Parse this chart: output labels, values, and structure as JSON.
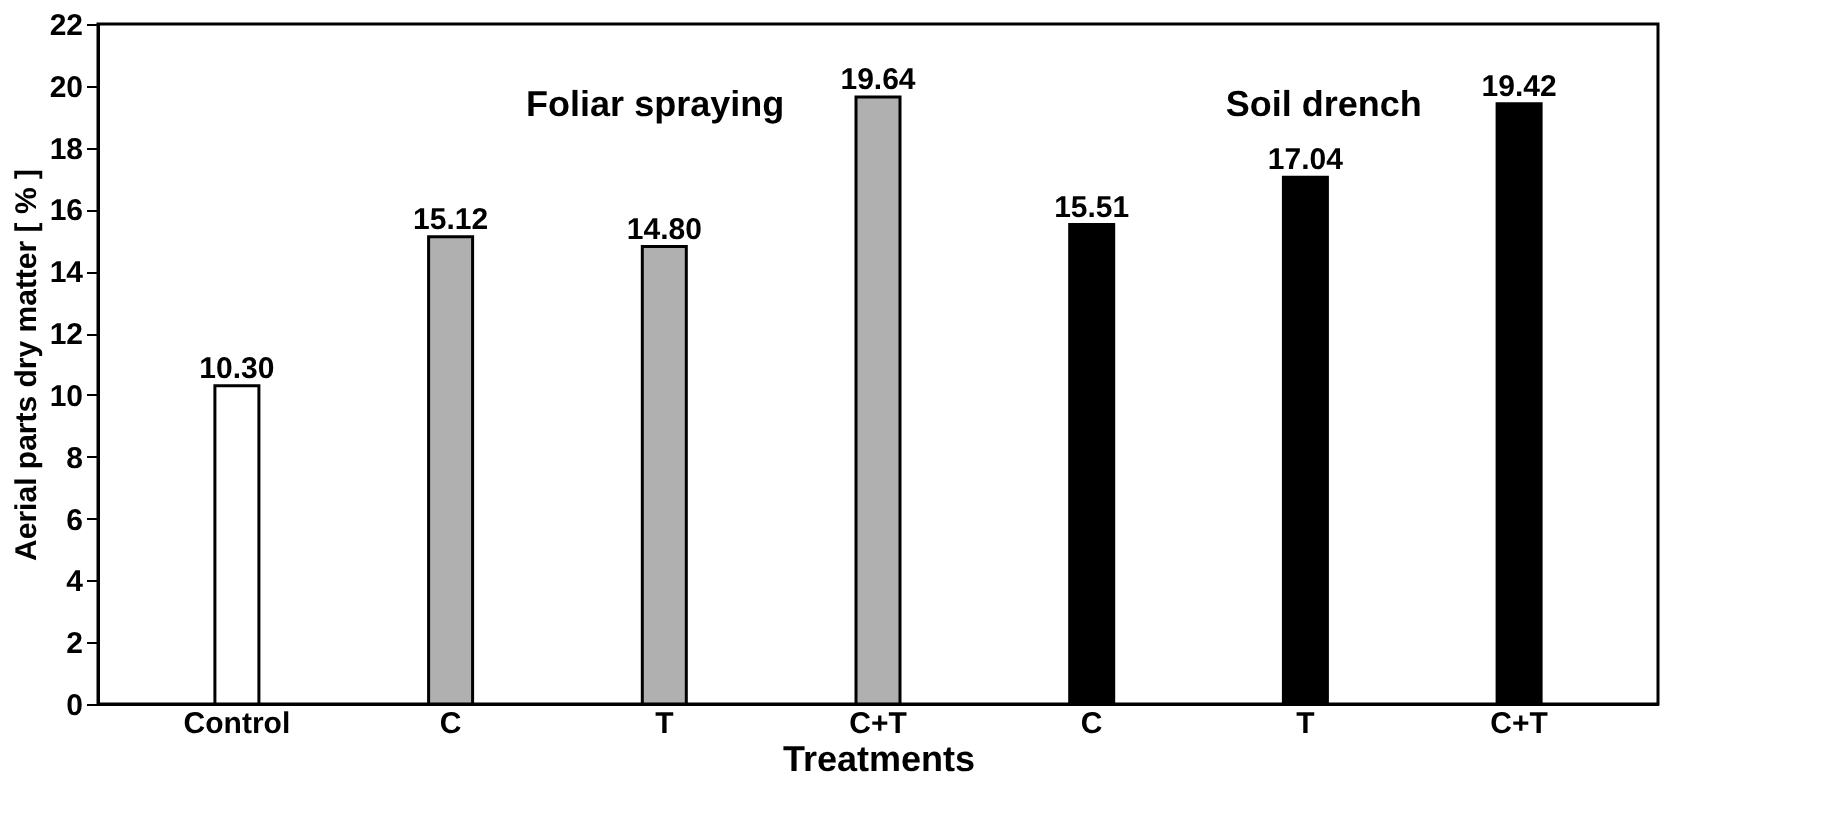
{
  "chart_data": {
    "type": "bar",
    "xlabel": "Treatments",
    "ylabel": "Aerial parts dry matter [ % ]",
    "categories": [
      "Control",
      "C",
      "T",
      "C+T",
      "C",
      "T",
      "C+T"
    ],
    "values": [
      10.3,
      15.12,
      14.8,
      19.64,
      15.51,
      17.04,
      19.42
    ],
    "colors": [
      "#ffffff",
      "#b0b0b0",
      "#b0b0b0",
      "#b0b0b0",
      "#000000",
      "#000000",
      "#000000"
    ],
    "value_labels": [
      "10.30",
      "15.12",
      "14.80",
      "19.64",
      "15.51",
      "17.04",
      "19.42"
    ],
    "ylim": [
      0,
      22
    ],
    "yticks": [
      0,
      2,
      4,
      6,
      8,
      10,
      12,
      14,
      16,
      18,
      20,
      22
    ],
    "annotations": [
      "Foliar spraying",
      "Soil drench"
    ]
  }
}
